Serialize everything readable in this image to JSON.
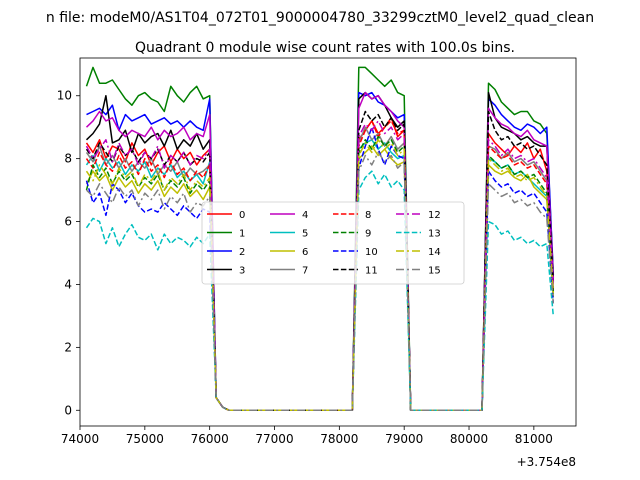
{
  "chart_data": {
    "type": "line",
    "suptitle": "n file: modeM0/AS1T04_072T01_9000004780_33299cztM0_level2_quad_clean",
    "title": "Quadrant 0 module wise count rates with 100.0s bins.",
    "xlabel": "",
    "ylabel": "",
    "x_offset_label": "+3.754e8",
    "xlim": [
      74000,
      81650
    ],
    "ylim": [
      -0.5,
      11.2
    ],
    "x_ticks": [
      74000,
      75000,
      76000,
      77000,
      78000,
      79000,
      80000,
      81000
    ],
    "y_ticks": [
      0,
      2,
      4,
      6,
      8,
      10
    ],
    "legend_location": "center",
    "x": [
      74100,
      74200,
      74300,
      74400,
      74500,
      74600,
      74700,
      74800,
      74900,
      75000,
      75100,
      75200,
      75300,
      75400,
      75500,
      75600,
      75700,
      75800,
      75900,
      76000,
      76100,
      76200,
      76300,
      76400,
      78100,
      78200,
      78300,
      78400,
      78500,
      78600,
      78700,
      78800,
      78900,
      79000,
      79100,
      80200,
      80300,
      80400,
      80500,
      80600,
      80700,
      80800,
      80900,
      81000,
      81100,
      81200,
      81300
    ],
    "series": [
      {
        "name": "0",
        "color": "#ff0000",
        "dash": "solid",
        "values": [
          8.5,
          8.2,
          8.6,
          8.0,
          8.4,
          8.3,
          7.9,
          8.5,
          8.1,
          8.3,
          7.8,
          8.2,
          8.4,
          7.9,
          8.3,
          8.0,
          8.2,
          7.8,
          8.1,
          8.3,
          0.4,
          0.1,
          0,
          0,
          0,
          0,
          8.6,
          8.9,
          9.2,
          8.8,
          9.0,
          9.3,
          8.7,
          8.9,
          0,
          0,
          8.8,
          8.5,
          8.3,
          8.1,
          8.4,
          8.2,
          8.5,
          8.0,
          8.3,
          7.6,
          4.2
        ]
      },
      {
        "name": "1",
        "color": "#008000",
        "dash": "solid",
        "values": [
          10.3,
          10.9,
          10.4,
          10.4,
          10.5,
          10.2,
          9.9,
          9.7,
          10.0,
          10.1,
          9.9,
          9.8,
          9.5,
          10.3,
          10.0,
          9.8,
          10.1,
          10.3,
          9.9,
          10.0,
          0.4,
          0.1,
          0,
          0,
          0,
          0,
          10.9,
          10.9,
          10.7,
          10.5,
          10.3,
          10.5,
          10.1,
          10.0,
          0,
          0,
          10.4,
          10.2,
          9.8,
          9.6,
          9.4,
          9.5,
          9.5,
          9.2,
          9.1,
          8.8,
          4.3
        ]
      },
      {
        "name": "2",
        "color": "#0000ff",
        "dash": "solid",
        "values": [
          9.4,
          9.5,
          9.6,
          9.4,
          9.7,
          8.9,
          9.4,
          9.2,
          9.3,
          9.4,
          9.1,
          9.2,
          9.3,
          9.1,
          9.2,
          9.0,
          9.2,
          9.0,
          8.9,
          9.9,
          0.4,
          0.1,
          0,
          0,
          0,
          0,
          10.1,
          10.0,
          10.1,
          9.8,
          9.7,
          9.5,
          9.3,
          9.4,
          0,
          0,
          9.9,
          9.7,
          9.4,
          9.2,
          9.0,
          8.9,
          9.1,
          9.0,
          8.8,
          9.0,
          4.3
        ]
      },
      {
        "name": "3",
        "color": "#000000",
        "dash": "solid",
        "values": [
          8.6,
          8.8,
          9.1,
          10.0,
          8.5,
          8.6,
          8.9,
          8.2,
          8.8,
          8.5,
          8.7,
          8.8,
          8.4,
          8.9,
          8.3,
          8.6,
          8.4,
          8.8,
          8.3,
          8.6,
          0.4,
          0.1,
          0,
          0,
          0,
          0,
          9.9,
          10.1,
          9.9,
          10.0,
          9.7,
          9.3,
          9.0,
          9.2,
          0,
          0,
          10.1,
          9.3,
          9.0,
          8.9,
          8.8,
          8.6,
          8.7,
          8.5,
          8.4,
          8.4,
          4.1
        ]
      },
      {
        "name": "4",
        "color": "#bf00bf",
        "dash": "solid",
        "values": [
          9.0,
          9.2,
          9.5,
          9.2,
          9.3,
          8.9,
          8.7,
          8.9,
          8.8,
          8.7,
          9.0,
          8.6,
          8.9,
          8.7,
          8.8,
          9.0,
          8.6,
          8.8,
          8.7,
          9.4,
          0.4,
          0.1,
          0,
          0,
          0,
          0,
          9.6,
          10.1,
          9.9,
          10.0,
          9.7,
          9.5,
          9.2,
          9.0,
          0,
          0,
          9.6,
          9.3,
          9.1,
          9.0,
          8.8,
          8.7,
          8.9,
          8.6,
          8.5,
          8.4,
          4.2
        ]
      },
      {
        "name": "5",
        "color": "#00bfbf",
        "dash": "solid",
        "values": [
          7.8,
          8.1,
          7.6,
          8.0,
          7.7,
          7.9,
          7.5,
          7.8,
          7.6,
          7.9,
          7.4,
          7.7,
          7.5,
          7.8,
          7.4,
          7.6,
          7.3,
          7.5,
          7.2,
          7.9,
          0.4,
          0.1,
          0,
          0,
          0,
          0,
          8.3,
          8.5,
          8.6,
          8.3,
          8.5,
          8.2,
          8.0,
          8.1,
          0,
          0,
          8.0,
          7.9,
          7.7,
          7.8,
          7.5,
          7.6,
          7.4,
          7.2,
          7.0,
          6.8,
          3.7
        ]
      },
      {
        "name": "6",
        "color": "#bfbf00",
        "dash": "solid",
        "values": [
          7.2,
          7.6,
          7.3,
          7.5,
          7.0,
          7.4,
          7.1,
          7.3,
          6.9,
          7.2,
          7.0,
          7.3,
          6.8,
          7.1,
          6.9,
          7.2,
          6.8,
          7.0,
          6.7,
          7.1,
          0.4,
          0.1,
          0,
          0,
          0,
          0,
          8.0,
          8.2,
          8.4,
          8.1,
          8.3,
          8.0,
          7.8,
          7.9,
          0,
          0,
          7.8,
          7.6,
          7.5,
          7.6,
          7.4,
          7.3,
          7.5,
          7.1,
          6.9,
          6.7,
          3.6
        ]
      },
      {
        "name": "7",
        "color": "#808080",
        "dash": "solid",
        "values": [
          8.2,
          7.9,
          8.4,
          7.8,
          8.1,
          7.7,
          8.0,
          7.6,
          7.9,
          7.7,
          8.0,
          7.5,
          7.8,
          7.6,
          7.9,
          7.4,
          7.7,
          7.5,
          7.6,
          7.8,
          0.4,
          0.1,
          0,
          0,
          0,
          0,
          8.5,
          9.0,
          8.6,
          8.8,
          8.4,
          8.7,
          8.3,
          8.5,
          0,
          0,
          8.4,
          8.3,
          8.0,
          8.2,
          7.9,
          8.0,
          7.8,
          7.9,
          7.6,
          7.3,
          3.9
        ]
      },
      {
        "name": "8",
        "color": "#ff0000",
        "dash": "dashed",
        "values": [
          8.0,
          7.7,
          8.2,
          7.8,
          7.6,
          8.1,
          7.7,
          7.9,
          7.5,
          8.0,
          7.6,
          7.8,
          7.4,
          7.9,
          7.5,
          7.7,
          7.3,
          7.6,
          7.4,
          7.8,
          0.4,
          0.1,
          0,
          0,
          0,
          0,
          8.4,
          8.9,
          9.2,
          8.7,
          9.0,
          9.2,
          8.8,
          8.9,
          0,
          0,
          8.4,
          8.2,
          8.0,
          8.1,
          7.8,
          7.9,
          7.7,
          7.8,
          7.5,
          7.2,
          3.8
        ]
      },
      {
        "name": "9",
        "color": "#008000",
        "dash": "dashed",
        "values": [
          7.0,
          7.8,
          7.4,
          7.7,
          7.2,
          7.6,
          7.3,
          7.5,
          7.1,
          7.4,
          7.2,
          7.5,
          7.0,
          7.3,
          7.1,
          7.4,
          6.9,
          7.2,
          7.0,
          7.3,
          0.4,
          0.1,
          0,
          0,
          0,
          0,
          8.2,
          8.6,
          8.3,
          8.7,
          8.4,
          8.6,
          8.2,
          8.4,
          0,
          0,
          8.1,
          7.9,
          7.7,
          7.8,
          7.5,
          7.6,
          7.4,
          7.5,
          7.2,
          6.9,
          3.7
        ]
      },
      {
        "name": "10",
        "color": "#0000ff",
        "dash": "dashed",
        "values": [
          7.3,
          6.6,
          6.9,
          6.2,
          7.2,
          7.0,
          6.6,
          6.9,
          6.5,
          6.3,
          6.4,
          6.3,
          6.6,
          6.4,
          6.2,
          6.5,
          6.3,
          6.1,
          6.4,
          6.3,
          0.4,
          0.1,
          0,
          0,
          0,
          0,
          7.7,
          8.4,
          9.0,
          8.3,
          7.8,
          8.4,
          8.1,
          8.0,
          0,
          0,
          7.6,
          7.3,
          7.1,
          7.2,
          6.9,
          7.0,
          6.8,
          6.9,
          6.6,
          6.3,
          3.4
        ]
      },
      {
        "name": "11",
        "color": "#000000",
        "dash": "dashed",
        "values": [
          8.3,
          8.0,
          8.5,
          8.2,
          7.9,
          8.4,
          8.1,
          8.3,
          7.9,
          8.2,
          8.0,
          8.3,
          7.8,
          8.1,
          7.9,
          8.2,
          7.8,
          8.0,
          7.9,
          8.2,
          0.4,
          0.1,
          0,
          0,
          0,
          0,
          8.9,
          9.5,
          9.2,
          9.4,
          9.0,
          9.3,
          8.9,
          9.1,
          0,
          0,
          9.5,
          8.9,
          8.6,
          8.7,
          8.4,
          8.5,
          8.3,
          8.4,
          8.1,
          7.8,
          4.1
        ]
      },
      {
        "name": "12",
        "color": "#bf00bf",
        "dash": "dashdot",
        "values": [
          8.4,
          8.0,
          8.3,
          8.6,
          7.9,
          8.5,
          8.1,
          8.3,
          7.8,
          8.2,
          8.0,
          8.4,
          7.7,
          8.1,
          7.9,
          8.2,
          7.8,
          8.1,
          8.0,
          8.3,
          0.4,
          0.1,
          0,
          0,
          0,
          0,
          8.7,
          9.1,
          8.9,
          9.2,
          8.8,
          9.0,
          8.6,
          8.8,
          0,
          0,
          8.6,
          8.4,
          8.1,
          8.3,
          8.0,
          8.1,
          7.9,
          8.0,
          7.7,
          7.4,
          4.0
        ]
      },
      {
        "name": "13",
        "color": "#00bfbf",
        "dash": "dashed",
        "values": [
          5.8,
          6.1,
          6.0,
          5.3,
          5.8,
          5.2,
          5.6,
          5.9,
          5.5,
          5.4,
          5.6,
          5.1,
          5.6,
          5.3,
          5.5,
          5.4,
          5.2,
          5.5,
          5.3,
          5.6,
          0.4,
          0.1,
          0,
          0,
          0,
          0,
          7.0,
          7.4,
          7.6,
          7.2,
          7.5,
          7.1,
          7.3,
          7.0,
          0,
          0,
          6.0,
          5.9,
          5.6,
          5.7,
          5.4,
          5.5,
          5.3,
          5.4,
          5.2,
          5.3,
          3.0
        ]
      },
      {
        "name": "14",
        "color": "#bfbf00",
        "dash": "dashdot",
        "values": [
          7.6,
          7.3,
          7.8,
          7.5,
          7.2,
          7.7,
          7.4,
          7.6,
          7.1,
          7.5,
          7.3,
          7.6,
          7.0,
          7.4,
          7.2,
          7.5,
          7.0,
          7.3,
          7.1,
          7.4,
          0.4,
          0.1,
          0,
          0,
          0,
          0,
          8.1,
          8.5,
          8.2,
          8.6,
          8.3,
          8.5,
          8.1,
          8.3,
          0,
          0,
          8.0,
          7.8,
          7.6,
          7.7,
          7.4,
          7.5,
          7.3,
          7.4,
          7.1,
          6.8,
          3.7
        ]
      },
      {
        "name": "15",
        "color": "#808080",
        "dash": "dashdot",
        "values": [
          7.0,
          6.8,
          7.2,
          6.9,
          6.6,
          7.1,
          6.8,
          7.0,
          6.5,
          6.9,
          6.7,
          7.0,
          6.4,
          6.8,
          6.6,
          6.9,
          6.3,
          6.6,
          6.5,
          6.8,
          0.4,
          0.1,
          0,
          0,
          0,
          0,
          7.6,
          8.1,
          7.8,
          8.2,
          7.9,
          8.1,
          7.7,
          7.9,
          0,
          0,
          7.2,
          7.0,
          6.8,
          6.9,
          6.6,
          6.7,
          6.5,
          6.6,
          6.3,
          6.1,
          3.4
        ]
      }
    ]
  }
}
